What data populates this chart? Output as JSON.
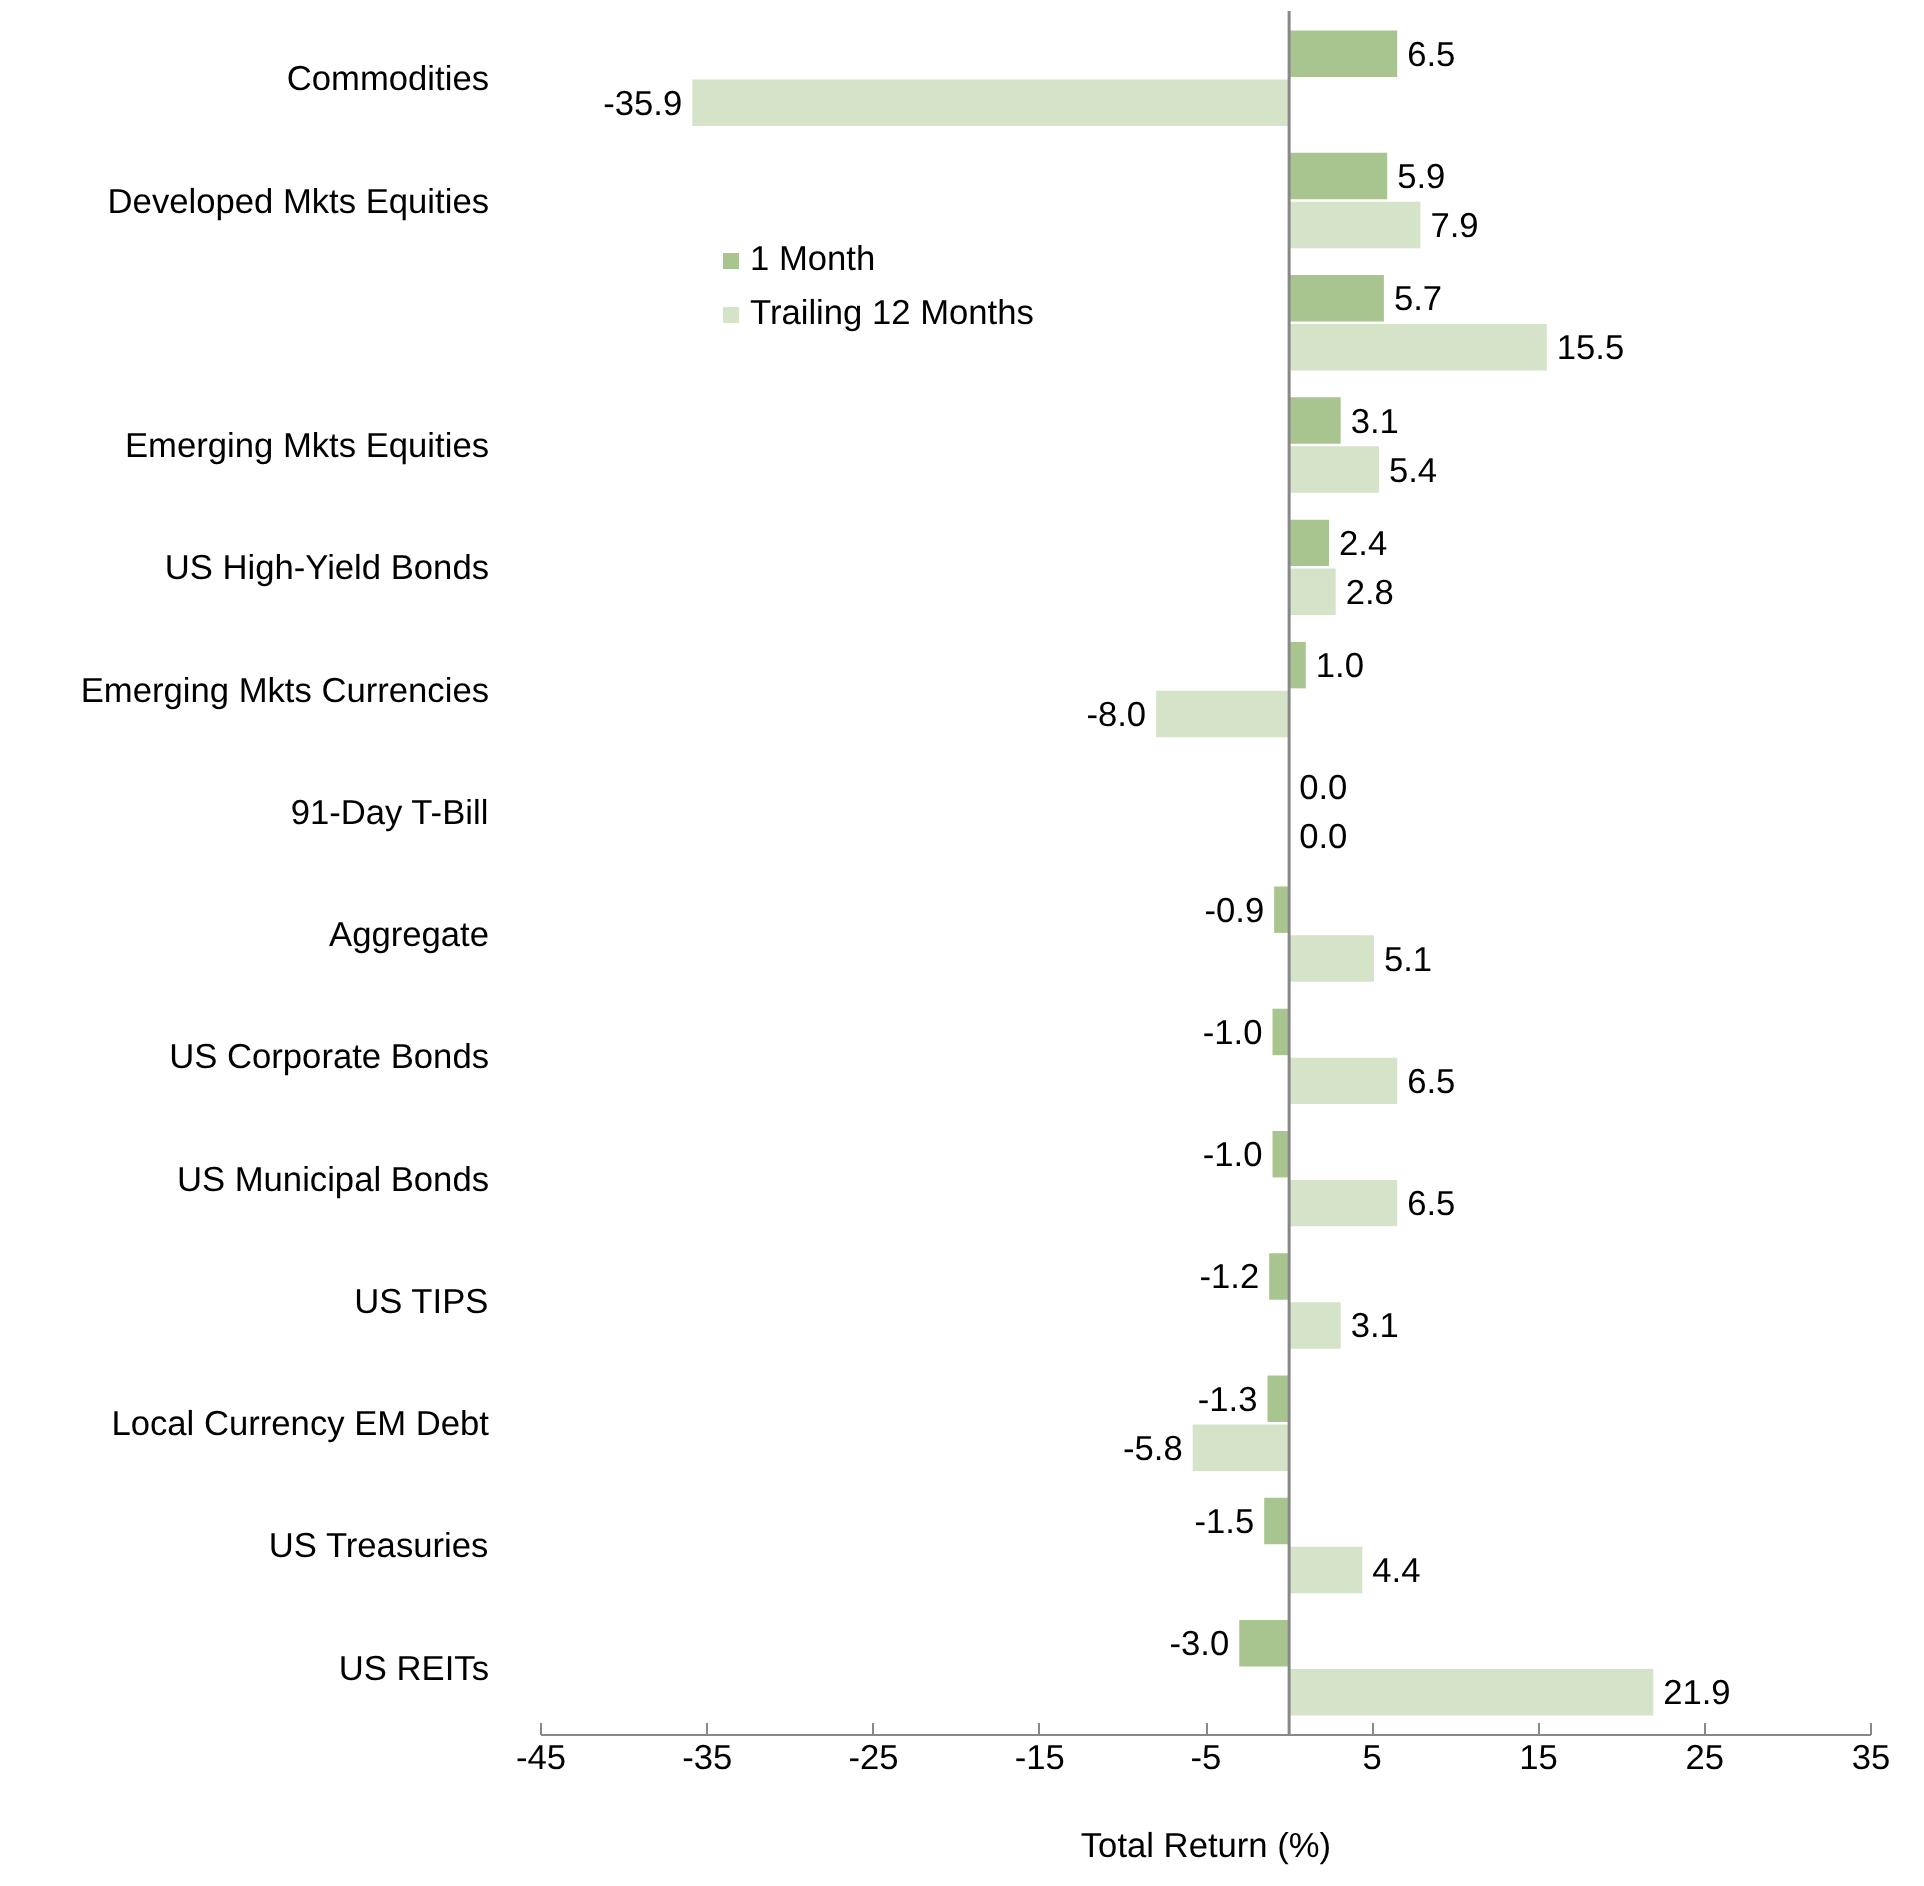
{
  "chart_data": {
    "type": "bar",
    "orientation": "horizontal",
    "xlabel": "Total Return (%)",
    "categories": [
      "Commodities",
      "Developed Mkts Equities",
      null,
      "Emerging Mkts Equities",
      "US High-Yield Bonds",
      "Emerging Mkts Currencies",
      "91-Day T-Bill",
      "Aggregate",
      "US Corporate Bonds",
      "US Municipal Bonds",
      "US TIPS",
      "Local Currency EM Debt",
      "US Treasuries",
      "US REITs"
    ],
    "series": [
      {
        "name": "1 Month",
        "color": "#a9c58f",
        "values": [
          6.5,
          5.9,
          5.7,
          3.1,
          2.4,
          1.0,
          0.0,
          -0.9,
          -1.0,
          -1.0,
          -1.2,
          -1.3,
          -1.5,
          -3.0
        ],
        "value_labels": [
          "6.5",
          "5.9",
          "5.7",
          "3.1",
          "2.4",
          "1.0",
          "0.0",
          "-0.9",
          "-1.0",
          "-1.0",
          "-1.2",
          "-1.3",
          "-1.5",
          "-3.0"
        ]
      },
      {
        "name": "Trailing 12 Months",
        "color": "#d5e3c8",
        "values": [
          -35.9,
          7.9,
          15.5,
          5.4,
          2.8,
          -8.0,
          0.0,
          5.1,
          6.5,
          6.5,
          3.1,
          -5.8,
          4.4,
          21.9
        ],
        "value_labels": [
          "-35.9",
          "7.9",
          "15.5",
          "5.4",
          "2.8",
          "-8.0",
          "0.0",
          "5.1",
          "6.5",
          "6.5",
          "3.1",
          "-5.8",
          "4.4",
          "21.9"
        ]
      }
    ],
    "xlim": [
      -45,
      35
    ],
    "xticks": [
      -45,
      -35,
      -25,
      -15,
      -5,
      5,
      15,
      25,
      35
    ],
    "legend": "top",
    "grid": false
  }
}
